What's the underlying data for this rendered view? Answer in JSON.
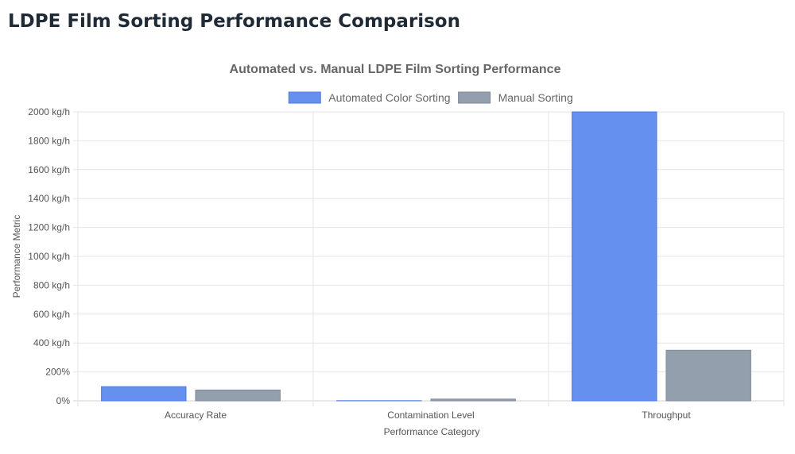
{
  "page": {
    "title": "LDPE Film Sorting Performance Comparison"
  },
  "chart_data": {
    "type": "bar",
    "title": "Automated vs. Manual LDPE Film Sorting Performance",
    "xlabel": "Performance Category",
    "ylabel": "Performance Metric",
    "categories": [
      "Accuracy Rate",
      "Contamination Level",
      "Throughput"
    ],
    "series": [
      {
        "name": "Automated Color Sorting",
        "values": [
          98,
          1,
          2000
        ],
        "color": "#6690f0",
        "border": "#4a78e6"
      },
      {
        "name": "Manual Sorting",
        "values": [
          75,
          12,
          350
        ],
        "color": "#949fae",
        "border": "#7f8a99"
      }
    ],
    "ylim": [
      0,
      2000
    ],
    "y_ticks": [
      "0%",
      "200%",
      "400 kg/h",
      "600 kg/h",
      "800 kg/h",
      "1000 kg/h",
      "1200 kg/h",
      "1400 kg/h",
      "1600 kg/h",
      "1800 kg/h",
      "2000 kg/h"
    ],
    "grid": true,
    "legend_position": "top"
  }
}
